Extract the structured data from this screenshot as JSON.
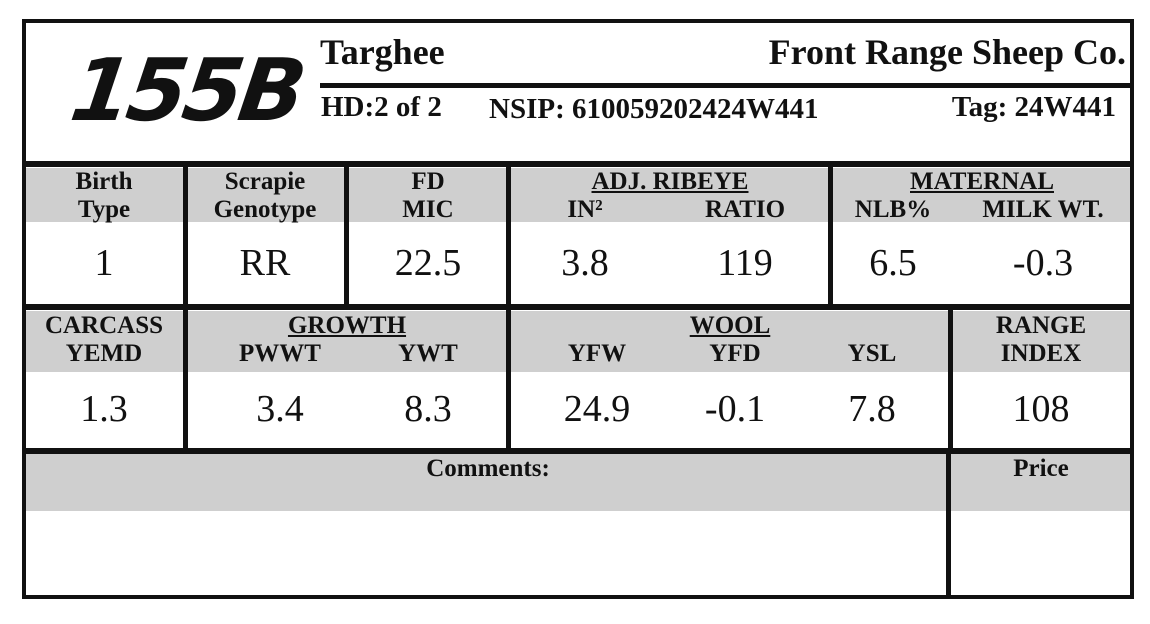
{
  "header": {
    "id": "155B",
    "breed": "Targhee",
    "farm": "Front Range Sheep Co.",
    "hd": "HD:2 of 2",
    "nsip": "NSIP: 610059202424W441",
    "tag": "Tag: 24W441"
  },
  "row1": {
    "birth_type": {
      "label": [
        "Birth",
        "Type"
      ],
      "value": 1
    },
    "scrapie": {
      "label": [
        "Scrapie",
        "Genotype"
      ],
      "value": "RR"
    },
    "fd": {
      "label": [
        "FD",
        "MIC"
      ],
      "value": 22.5
    },
    "ribeye": {
      "title": "ADJ. RIBEYE",
      "columns": [
        {
          "label": "IN²",
          "value": 3.8
        },
        {
          "label": "RATIO",
          "value": 119
        }
      ]
    },
    "maternal": {
      "title": "MATERNAL",
      "columns": [
        {
          "label": "NLB%",
          "value": 6.5
        },
        {
          "label": "MILK WT.",
          "value": -0.3
        }
      ]
    }
  },
  "row2": {
    "carcass": {
      "label": [
        "CARCASS",
        "YEMD"
      ],
      "value": 1.3
    },
    "growth": {
      "title": "GROWTH",
      "columns": [
        {
          "label": "PWWT",
          "value": 3.4
        },
        {
          "label": "YWT",
          "value": 8.3
        }
      ]
    },
    "wool": {
      "title": "WOOL",
      "columns": [
        {
          "label": "YFW",
          "value": 24.9
        },
        {
          "label": "YFD",
          "value": -0.1
        },
        {
          "label": "YSL",
          "value": 7.8
        }
      ]
    },
    "range_index": {
      "label": [
        "RANGE",
        "INDEX"
      ],
      "value": 108
    }
  },
  "row3": {
    "comments": "Comments:",
    "price": "Price"
  }
}
